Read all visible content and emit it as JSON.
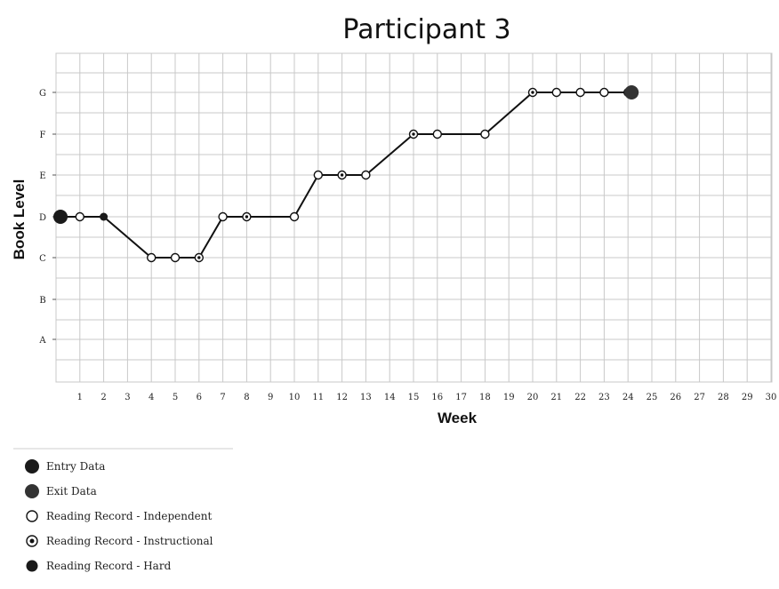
{
  "chart_data": {
    "type": "line",
    "title": "Participant 3",
    "xlabel": "Week",
    "ylabel": "Book Level",
    "x_ticks": [
      1,
      2,
      3,
      4,
      5,
      6,
      7,
      8,
      9,
      10,
      11,
      12,
      13,
      14,
      15,
      16,
      17,
      18,
      19,
      20,
      21,
      22,
      23,
      24,
      25,
      26,
      27,
      28,
      29,
      30
    ],
    "y_categories": [
      "A",
      "B",
      "C",
      "D",
      "E",
      "F",
      "G"
    ],
    "xlim": [
      0,
      30
    ],
    "grid": true,
    "series": [
      {
        "name": "",
        "points": [
          {
            "x": 0,
            "y": "D",
            "marker": "entry"
          },
          {
            "x": 1,
            "y": "D",
            "marker": "independent"
          },
          {
            "x": 2,
            "y": "D",
            "marker": "hard"
          },
          {
            "x": 4,
            "y": "C",
            "marker": "independent"
          },
          {
            "x": 5,
            "y": "C",
            "marker": "independent"
          },
          {
            "x": 6,
            "y": "C",
            "marker": "instructional"
          },
          {
            "x": 7,
            "y": "D",
            "marker": "independent"
          },
          {
            "x": 8,
            "y": "D",
            "marker": "instructional"
          },
          {
            "x": 10,
            "y": "D",
            "marker": "independent"
          },
          {
            "x": 11,
            "y": "E",
            "marker": "independent"
          },
          {
            "x": 12,
            "y": "E",
            "marker": "instructional"
          },
          {
            "x": 13,
            "y": "E",
            "marker": "independent"
          },
          {
            "x": 15,
            "y": "F",
            "marker": "instructional"
          },
          {
            "x": 16,
            "y": "F",
            "marker": "independent"
          },
          {
            "x": 18,
            "y": "F",
            "marker": "independent"
          },
          {
            "x": 20,
            "y": "G",
            "marker": "instructional"
          },
          {
            "x": 21,
            "y": "G",
            "marker": "independent"
          },
          {
            "x": 22,
            "y": "G",
            "marker": "independent"
          },
          {
            "x": 23,
            "y": "G",
            "marker": "independent"
          },
          {
            "x": 24,
            "y": "G",
            "marker": "instructional"
          }
        ]
      }
    ],
    "exit_point": {
      "x": 24,
      "y": "G"
    },
    "legend": [
      {
        "label": "Entry Data",
        "marker": "entry"
      },
      {
        "label": "Exit Data",
        "marker": "exit"
      },
      {
        "label": "Reading Record - Independent",
        "marker": "independent"
      },
      {
        "label": "Reading Record - Instructional",
        "marker": "instructional"
      },
      {
        "label": "Reading Record - Hard",
        "marker": "hard"
      }
    ],
    "legend_position": "bottom-left",
    "colors": {
      "line": "#111111",
      "grid": "#c8c8c8",
      "marker": "#111111"
    }
  }
}
